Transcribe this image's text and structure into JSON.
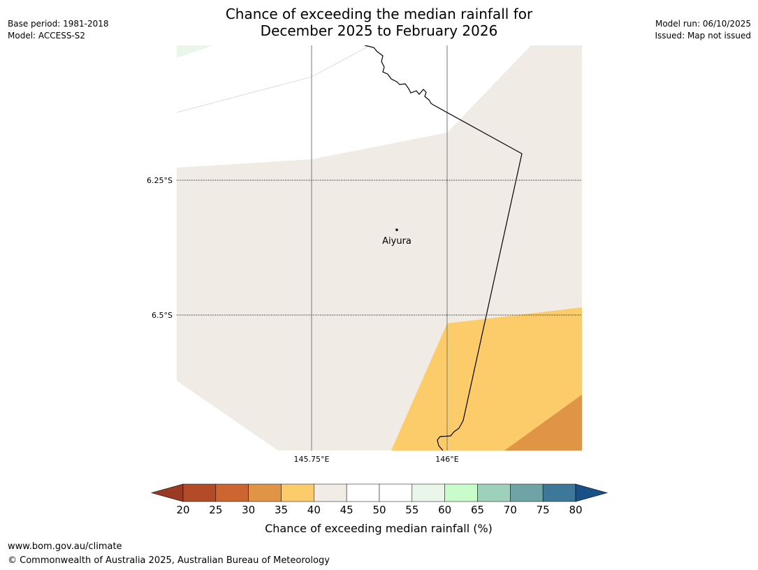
{
  "title": {
    "line1": "Chance of exceeding the median rainfall for",
    "line2": "December 2025 to February 2026"
  },
  "meta_left": {
    "base_period": "Base period: 1981-2018",
    "model": "Model: ACCESS-S2"
  },
  "meta_right": {
    "model_run": "Model run: 06/10/2025",
    "issued": "Issued: Map not issued"
  },
  "map": {
    "lat_labels": [
      "6.25°S",
      "6.5°S"
    ],
    "lon_labels": [
      "145.75°E",
      "146°E"
    ],
    "location": {
      "name": "Aiyura"
    }
  },
  "colorbar": {
    "ticks": [
      "20",
      "25",
      "30",
      "35",
      "40",
      "45",
      "50",
      "55",
      "60",
      "65",
      "70",
      "75",
      "80"
    ],
    "colors": [
      "#b24b26",
      "#cc6530",
      "#e09446",
      "#fdcc6a",
      "#f1ece5",
      "#ffffff",
      "#ffffff",
      "#eaf6e9",
      "#c9fcca",
      "#9ed1bb",
      "#6fa4a7",
      "#3e7898"
    ],
    "under_color": "#9b3a23",
    "over_color": "#1a5088",
    "label": "Chance of exceeding median rainfall (%)"
  },
  "footer": {
    "url": "www.bom.gov.au/climate",
    "copyright": "© Commonwealth of Australia 2025, Australian Bureau of Meteorology"
  }
}
